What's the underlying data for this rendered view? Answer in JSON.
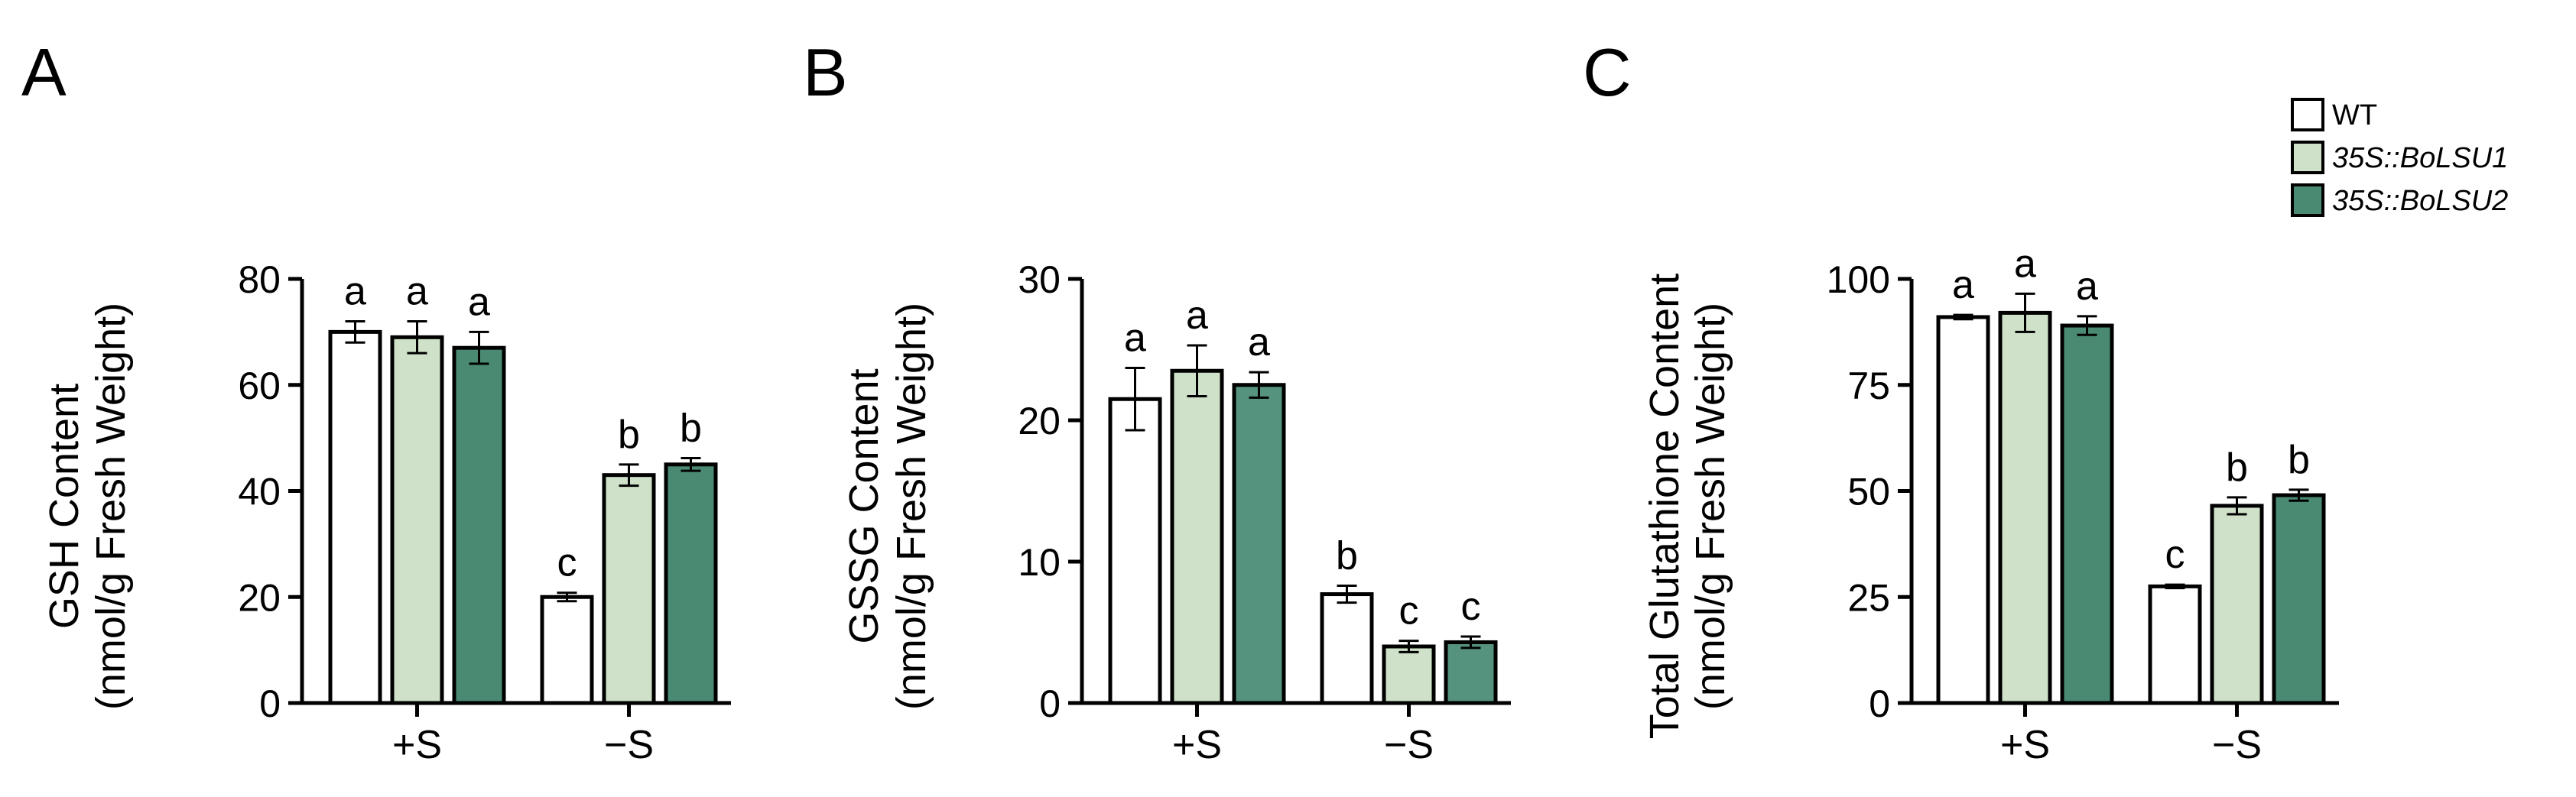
{
  "legend": [
    {
      "label": "WT",
      "italic": false,
      "color": "#ffffff"
    },
    {
      "label": "35S::BoLSU1",
      "italic": true,
      "color": "#cfe2c9"
    },
    {
      "label": "35S::BoLSU2",
      "italic": true,
      "color": "#4a8a73"
    }
  ],
  "colors": {
    "axis": "#000000",
    "bar_stroke": "#000000"
  },
  "chart_data": [
    {
      "panel": "A",
      "type": "bar",
      "ylabel_lines": [
        "GSH Content",
        "(nmol/g Fresh Weight)"
      ],
      "ylim": [
        0,
        80
      ],
      "yticks": [
        0,
        20,
        40,
        60,
        80
      ],
      "categories": [
        "+S",
        "−S"
      ],
      "series": [
        {
          "name": "WT",
          "color": "#ffffff",
          "values": [
            70,
            20
          ],
          "errors": [
            2,
            0.8
          ],
          "letters": [
            "a",
            "c"
          ]
        },
        {
          "name": "35S::BoLSU1",
          "color": "#cfe2c9",
          "values": [
            69,
            43
          ],
          "errors": [
            3,
            2
          ],
          "letters": [
            "a",
            "b"
          ]
        },
        {
          "name": "35S::BoLSU2",
          "color": "#4a8a73",
          "values": [
            67,
            45
          ],
          "errors": [
            3,
            1.2
          ],
          "letters": [
            "a",
            "b"
          ]
        }
      ]
    },
    {
      "panel": "B",
      "type": "bar",
      "ylabel_lines": [
        "GSSG Content",
        "(nmol/g Fresh Weight)"
      ],
      "ylim": [
        0,
        30
      ],
      "yticks": [
        0,
        10,
        20,
        30
      ],
      "categories": [
        "+S",
        "−S"
      ],
      "series": [
        {
          "name": "WT",
          "color": "#ffffff",
          "values": [
            21.5,
            7.7
          ],
          "errors": [
            2.2,
            0.6
          ],
          "letters": [
            "a",
            "b"
          ]
        },
        {
          "name": "35S::BoLSU1",
          "color": "#cfe2c9",
          "values": [
            23.5,
            4.0
          ],
          "errors": [
            1.8,
            0.4
          ],
          "letters": [
            "a",
            "c"
          ]
        },
        {
          "name": "35S::BoLSU2",
          "color": "#55937f",
          "values": [
            22.5,
            4.3
          ],
          "errors": [
            0.9,
            0.4
          ],
          "letters": [
            "a",
            "c"
          ]
        }
      ]
    },
    {
      "panel": "C",
      "type": "bar",
      "ylabel_lines": [
        "Total Glutathione Content",
        "(nmol/g Fresh Weight)"
      ],
      "ylim": [
        0,
        100
      ],
      "yticks": [
        0,
        25,
        50,
        75,
        100
      ],
      "categories": [
        "+S",
        "−S"
      ],
      "series": [
        {
          "name": "WT",
          "color": "#ffffff",
          "values": [
            91,
            27.5
          ],
          "errors": [
            0.5,
            0.4
          ],
          "letters": [
            "a",
            "c"
          ]
        },
        {
          "name": "35S::BoLSU1",
          "color": "#cfe2c9",
          "values": [
            92,
            46.5
          ],
          "errors": [
            4.5,
            2
          ],
          "letters": [
            "a",
            "b"
          ]
        },
        {
          "name": "35S::BoLSU2",
          "color": "#4a8a73",
          "values": [
            89,
            49
          ],
          "errors": [
            2.2,
            1.3
          ],
          "letters": [
            "a",
            "b"
          ]
        }
      ]
    }
  ]
}
